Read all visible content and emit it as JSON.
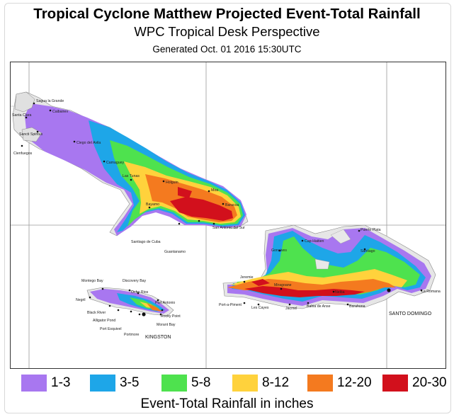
{
  "header": {
    "title": "Tropical Cyclone Matthew Projected Event-Total Rainfall",
    "subtitle": "WPC Tropical Desk Perspective",
    "generated": "Generated Oct. 01 2016 15:30UTC"
  },
  "legend": {
    "items": [
      {
        "label": "1-3",
        "color": "#a877f0"
      },
      {
        "label": "3-5",
        "color": "#1ea6e8"
      },
      {
        "label": "5-8",
        "color": "#4ee24e"
      },
      {
        "label": "8-12",
        "color": "#ffd23c"
      },
      {
        "label": "12-20",
        "color": "#f47a1f"
      },
      {
        "label": "20-30",
        "color": "#d2101c"
      }
    ],
    "units": "Event-Total Rainfall in inches"
  },
  "map": {
    "cities": {
      "cuba": [
        "Sagua la Grande",
        "Caibarien",
        "Santa Clara",
        "Sancti Spiritus",
        "Cienfuegos",
        "Ciego del Avila",
        "Camaguey",
        "Las Tunas",
        "Holguin",
        "Moa",
        "Baracoa",
        "Bayamo",
        "San Antonio del Sur",
        "Santiago de Cuba",
        "Guantanamo"
      ],
      "jamaica": [
        "Montego Bay",
        "Discovery Bay",
        "Ocho Rios",
        "Negril",
        "Port Antonio",
        "Black River",
        "Alligator Pond",
        "Rocky Point",
        "Morant Bay",
        "Port Esquivel",
        "Portmore",
        "KINGSTON"
      ],
      "hispaniola": [
        "Puerto Plata",
        "Cap-Haitien",
        "Gonaives",
        "Santiago",
        "Jeremie",
        "Miragoane",
        "Port-a-Piment",
        "Les Cayes",
        "Jacmel",
        "Bahia de Anse",
        "Neiba",
        "Barahona",
        "La Romana",
        "SANTO DOMINGO"
      ]
    }
  }
}
